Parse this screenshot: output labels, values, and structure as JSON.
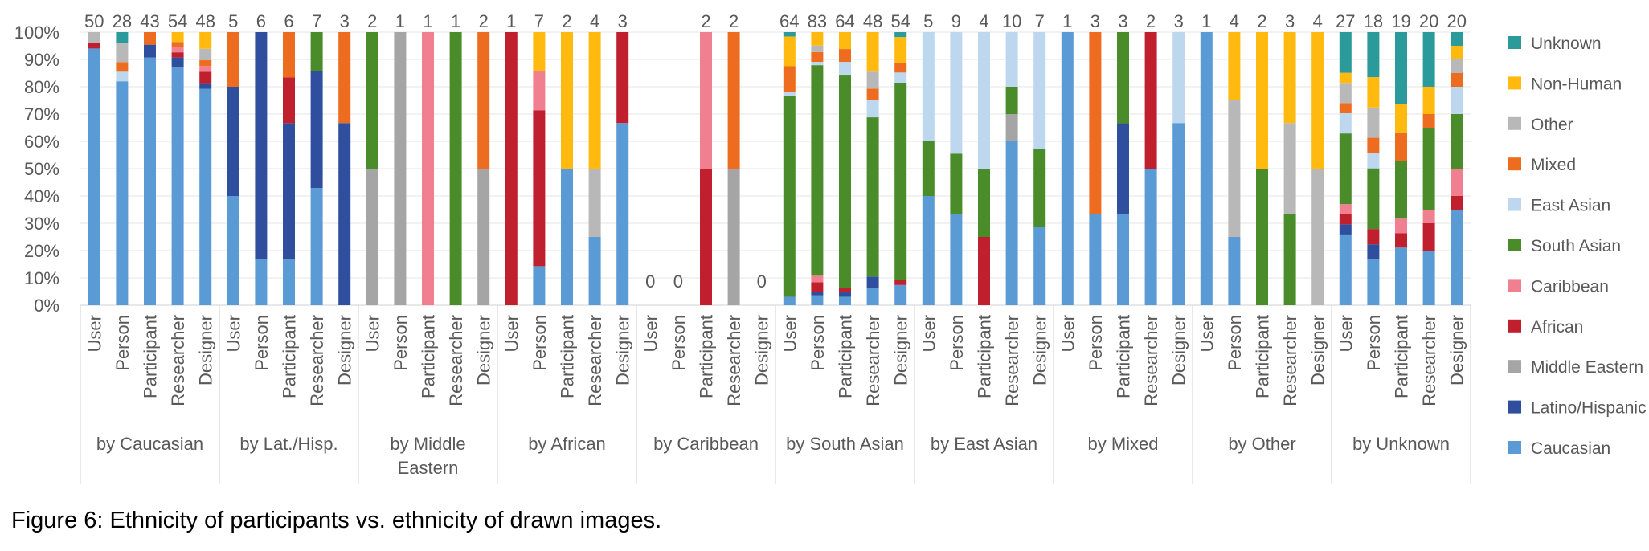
{
  "caption": "Figure 6:  Ethnicity of participants vs. ethnicity of drawn images.",
  "chart_data": {
    "type": "bar",
    "stacked": true,
    "normalized": true,
    "ylim": [
      0,
      100
    ],
    "yticks": [
      "0%",
      "10%",
      "20%",
      "30%",
      "40%",
      "50%",
      "60%",
      "70%",
      "80%",
      "90%",
      "100%"
    ],
    "grid": true,
    "legend_position": "right",
    "colors": {
      "Caucasian": "#5B9BD5",
      "Latino/Hispanic": "#2F4F9E",
      "Middle Eastern": "#A5A5A5",
      "African": "#C0202E",
      "Caribbean": "#F08090",
      "South Asian": "#4A8C2A",
      "East Asian": "#BDD7EE",
      "Mixed": "#ED6C1F",
      "Other": "#B8B8B8",
      "Non-Human": "#FFB90F",
      "Unknown": "#2A9A9A"
    },
    "legend": [
      "Unknown",
      "Non-Human",
      "Other",
      "Mixed",
      "East Asian",
      "South Asian",
      "Caribbean",
      "African",
      "Middle Eastern",
      "Latino/Hispanic",
      "Caucasian"
    ],
    "stack_order": [
      "Caucasian",
      "Latino/Hispanic",
      "Middle Eastern",
      "African",
      "Caribbean",
      "South Asian",
      "East Asian",
      "Mixed",
      "Other",
      "Non-Human",
      "Unknown"
    ],
    "groups": [
      {
        "label": "by Caucasian",
        "bars": [
          {
            "cat": "User",
            "n": "50",
            "seg": {
              "Caucasian": 94,
              "African": 2,
              "Other": 4
            }
          },
          {
            "cat": "Person",
            "n": "28",
            "seg": {
              "Caucasian": 82,
              "East Asian": 3.5,
              "Mixed": 3.5,
              "Other": 7,
              "Unknown": 4
            }
          },
          {
            "cat": "Participant",
            "n": "43",
            "seg": {
              "Caucasian": 90.7,
              "Latino/Hispanic": 4.7,
              "Mixed": 4.6
            }
          },
          {
            "cat": "Researcher",
            "n": "54",
            "seg": {
              "Caucasian": 87,
              "Latino/Hispanic": 3.7,
              "African": 1.9,
              "Caribbean": 1.9,
              "Mixed": 1.9,
              "Non-Human": 3.6
            }
          },
          {
            "cat": "Designer",
            "n": "48",
            "seg": {
              "Caucasian": 79.2,
              "Latino/Hispanic": 2.1,
              "African": 4.2,
              "Caribbean": 2.1,
              "Mixed": 2.1,
              "Other": 4.2,
              "Non-Human": 6.1
            }
          }
        ]
      },
      {
        "label": "by Lat./Hisp.",
        "bars": [
          {
            "cat": "User",
            "n": "5",
            "seg": {
              "Caucasian": 40,
              "Latino/Hispanic": 40,
              "Mixed": 20
            }
          },
          {
            "cat": "Person",
            "n": "6",
            "seg": {
              "Caucasian": 16.7,
              "Latino/Hispanic": 83.3
            }
          },
          {
            "cat": "Participant",
            "n": "6",
            "seg": {
              "Caucasian": 16.7,
              "Latino/Hispanic": 50,
              "African": 16.7,
              "Mixed": 16.6
            }
          },
          {
            "cat": "Researcher",
            "n": "7",
            "seg": {
              "Caucasian": 42.9,
              "Latino/Hispanic": 42.9,
              "South Asian": 14.2
            }
          },
          {
            "cat": "Designer",
            "n": "3",
            "seg": {
              "Latino/Hispanic": 66.7,
              "Mixed": 33.3
            }
          }
        ]
      },
      {
        "label": "by Middle Eastern",
        "bars": [
          {
            "cat": "User",
            "n": "2",
            "seg": {
              "Middle Eastern": 50,
              "South Asian": 50
            }
          },
          {
            "cat": "Person",
            "n": "1",
            "seg": {
              "Middle Eastern": 100
            }
          },
          {
            "cat": "Participant",
            "n": "1",
            "seg": {
              "Caribbean": 100
            }
          },
          {
            "cat": "Researcher",
            "n": "1",
            "seg": {
              "South Asian": 100
            }
          },
          {
            "cat": "Designer",
            "n": "2",
            "seg": {
              "Middle Eastern": 50,
              "Mixed": 50
            }
          }
        ]
      },
      {
        "label": "by African",
        "bars": [
          {
            "cat": "User",
            "n": "1",
            "seg": {
              "African": 100
            }
          },
          {
            "cat": "Person",
            "n": "7",
            "seg": {
              "Caucasian": 14.3,
              "African": 57.1,
              "Caribbean": 14.3,
              "Non-Human": 14.3
            }
          },
          {
            "cat": "Participant",
            "n": "2",
            "seg": {
              "Caucasian": 50,
              "Non-Human": 50
            }
          },
          {
            "cat": "Researcher",
            "n": "4",
            "seg": {
              "Caucasian": 25,
              "Other": 25,
              "Non-Human": 50
            }
          },
          {
            "cat": "Designer",
            "n": "3",
            "seg": {
              "Caucasian": 66.7,
              "African": 33.3
            }
          }
        ]
      },
      {
        "label": "by Caribbean",
        "bars": [
          {
            "cat": "User",
            "n": "0",
            "seg": {}
          },
          {
            "cat": "Person",
            "n": "0",
            "seg": {}
          },
          {
            "cat": "Participant",
            "n": "2",
            "seg": {
              "African": 50,
              "Caribbean": 50
            }
          },
          {
            "cat": "Researcher",
            "n": "2",
            "seg": {
              "Middle Eastern": 50,
              "Mixed": 50
            }
          },
          {
            "cat": "Designer",
            "n": "0",
            "seg": {}
          }
        ]
      },
      {
        "label": "by South Asian",
        "bars": [
          {
            "cat": "User",
            "n": "64",
            "seg": {
              "Caucasian": 3.1,
              "South Asian": 73.4,
              "East Asian": 1.6,
              "Mixed": 9.4,
              "Non-Human": 10.9,
              "Unknown": 1.6
            }
          },
          {
            "cat": "Person",
            "n": "83",
            "seg": {
              "Caucasian": 3.6,
              "Latino/Hispanic": 1.2,
              "African": 3.6,
              "Caribbean": 2.4,
              "South Asian": 77.1,
              "East Asian": 1.2,
              "Mixed": 3.6,
              "Other": 2.4,
              "Non-Human": 4.9
            }
          },
          {
            "cat": "Participant",
            "n": "64",
            "seg": {
              "Caucasian": 3.1,
              "Latino/Hispanic": 1.6,
              "African": 1.6,
              "South Asian": 78.1,
              "East Asian": 4.7,
              "Mixed": 4.7,
              "Non-Human": 6.2
            }
          },
          {
            "cat": "Researcher",
            "n": "48",
            "seg": {
              "Caucasian": 6.3,
              "Latino/Hispanic": 4.2,
              "South Asian": 58.3,
              "East Asian": 6.3,
              "Mixed": 4.2,
              "Other": 6.2,
              "Non-Human": 14.5
            }
          },
          {
            "cat": "Designer",
            "n": "54",
            "seg": {
              "Caucasian": 7.4,
              "African": 1.9,
              "South Asian": 72.2,
              "East Asian": 3.7,
              "Mixed": 3.7,
              "Non-Human": 9.3,
              "Unknown": 1.8
            }
          }
        ]
      },
      {
        "label": "by East Asian",
        "bars": [
          {
            "cat": "User",
            "n": "5",
            "seg": {
              "Caucasian": 40,
              "South Asian": 20,
              "East Asian": 40
            }
          },
          {
            "cat": "Person",
            "n": "9",
            "seg": {
              "Caucasian": 33.3,
              "South Asian": 22.2,
              "East Asian": 44.5
            }
          },
          {
            "cat": "Participant",
            "n": "4",
            "seg": {
              "African": 25,
              "South Asian": 25,
              "East Asian": 50
            }
          },
          {
            "cat": "Researcher",
            "n": "10",
            "seg": {
              "Caucasian": 60,
              "Middle Eastern": 10,
              "South Asian": 10,
              "East Asian": 20
            }
          },
          {
            "cat": "Designer",
            "n": "7",
            "seg": {
              "Caucasian": 28.6,
              "South Asian": 28.6,
              "East Asian": 42.8
            }
          }
        ]
      },
      {
        "label": "by Mixed",
        "bars": [
          {
            "cat": "User",
            "n": "1",
            "seg": {
              "Caucasian": 100
            }
          },
          {
            "cat": "Person",
            "n": "3",
            "seg": {
              "Caucasian": 33.3,
              "Mixed": 66.7
            }
          },
          {
            "cat": "Participant",
            "n": "3",
            "seg": {
              "Caucasian": 33.3,
              "Latino/Hispanic": 33.3,
              "South Asian": 33.4
            }
          },
          {
            "cat": "Researcher",
            "n": "2",
            "seg": {
              "Caucasian": 50,
              "African": 50
            }
          },
          {
            "cat": "Designer",
            "n": "3",
            "seg": {
              "Caucasian": 66.7,
              "East Asian": 33.3
            }
          }
        ]
      },
      {
        "label": "by Other",
        "bars": [
          {
            "cat": "User",
            "n": "1",
            "seg": {
              "Caucasian": 100
            }
          },
          {
            "cat": "Person",
            "n": "4",
            "seg": {
              "Caucasian": 25,
              "Other": 50,
              "Non-Human": 25
            }
          },
          {
            "cat": "Participant",
            "n": "2",
            "seg": {
              "South Asian": 50,
              "Non-Human": 50
            }
          },
          {
            "cat": "Researcher",
            "n": "3",
            "seg": {
              "South Asian": 33.3,
              "Other": 33.4,
              "Non-Human": 33.3
            }
          },
          {
            "cat": "Designer",
            "n": "4",
            "seg": {
              "Other": 50,
              "Non-Human": 50
            }
          }
        ]
      },
      {
        "label": "by Unknown",
        "bars": [
          {
            "cat": "User",
            "n": "27",
            "seg": {
              "Caucasian": 25.9,
              "Latino/Hispanic": 3.7,
              "African": 3.7,
              "Caribbean": 3.7,
              "South Asian": 25.9,
              "East Asian": 7.4,
              "Mixed": 3.7,
              "Other": 7.4,
              "Non-Human": 3.7,
              "Unknown": 14.9
            }
          },
          {
            "cat": "Person",
            "n": "18",
            "seg": {
              "Caucasian": 16.7,
              "Latino/Hispanic": 5.6,
              "African": 5.6,
              "South Asian": 22.2,
              "East Asian": 5.6,
              "Mixed": 5.6,
              "Other": 11.1,
              "Non-Human": 11.1,
              "Unknown": 16.5
            }
          },
          {
            "cat": "Participant",
            "n": "19",
            "seg": {
              "Caucasian": 21.1,
              "African": 5.3,
              "Caribbean": 5.3,
              "South Asian": 21.1,
              "Mixed": 10.5,
              "Non-Human": 10.5,
              "Unknown": 26.2
            }
          },
          {
            "cat": "Researcher",
            "n": "20",
            "seg": {
              "Caucasian": 20,
              "African": 10,
              "Caribbean": 5,
              "South Asian": 30,
              "Mixed": 5,
              "Non-Human": 10,
              "Unknown": 20
            }
          },
          {
            "cat": "Designer",
            "n": "20",
            "seg": {
              "Caucasian": 35,
              "African": 5,
              "Caribbean": 10,
              "South Asian": 20,
              "East Asian": 10,
              "Mixed": 5,
              "Other": 5,
              "Non-Human": 5,
              "Unknown": 5
            }
          }
        ]
      }
    ]
  }
}
